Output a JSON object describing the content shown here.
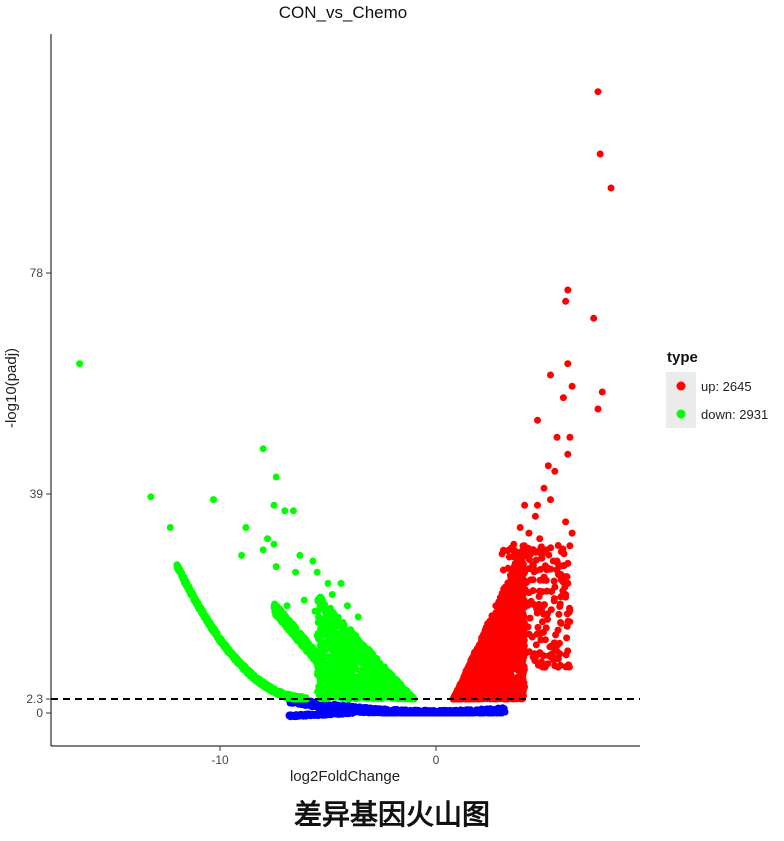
{
  "chart_data": {
    "type": "scatter",
    "title": "CON_vs_Chemo",
    "xlabel": "log2FoldChange",
    "ylabel": "-log10(padj)",
    "xlim": [
      -17.5,
      9.5
    ],
    "ylim": [
      -5,
      118
    ],
    "x_ticks": [
      -10,
      0
    ],
    "x_tick_labels": [
      "-10",
      "0"
    ],
    "y_ticks": [
      0,
      2.3,
      39,
      78
    ],
    "y_tick_labels": [
      "0",
      "2.3",
      "39",
      "78"
    ],
    "threshold_y": 2.3,
    "grid": false,
    "legend": {
      "title": "type",
      "placement": "right",
      "entries": [
        {
          "label": "up: 2645",
          "color": "#ff0000"
        },
        {
          "label": "down: 2931",
          "color": "#00ff00"
        }
      ]
    },
    "series": [
      {
        "name": "up: 2645",
        "color": "#ff0000",
        "points": [
          [
            7.5,
            110
          ],
          [
            7.6,
            99
          ],
          [
            8.1,
            93
          ],
          [
            6.1,
            75
          ],
          [
            6.0,
            73
          ],
          [
            7.3,
            70
          ],
          [
            6.1,
            62
          ],
          [
            7.7,
            57
          ],
          [
            7.5,
            54
          ],
          [
            5.3,
            60
          ],
          [
            6.3,
            58
          ],
          [
            5.9,
            56
          ],
          [
            4.7,
            52
          ],
          [
            5.6,
            49
          ],
          [
            6.2,
            49
          ],
          [
            5.2,
            44
          ],
          [
            5.5,
            43
          ],
          [
            6.1,
            46
          ],
          [
            5.0,
            40
          ],
          [
            4.7,
            37
          ],
          [
            4.1,
            37
          ],
          [
            4.6,
            35
          ],
          [
            5.3,
            38
          ],
          [
            3.9,
            33
          ],
          [
            4.3,
            32
          ],
          [
            4.8,
            31
          ],
          [
            6.3,
            32
          ],
          [
            6.0,
            34
          ],
          [
            3.6,
            30
          ],
          [
            4.2,
            28
          ],
          [
            5.1,
            29
          ],
          [
            5.6,
            27
          ],
          [
            5.7,
            26
          ],
          [
            6.1,
            23
          ],
          [
            6.0,
            21
          ]
        ]
      },
      {
        "name": "down: 2931",
        "color": "#00ff00",
        "points": [
          [
            -16.5,
            62
          ],
          [
            -13.2,
            38.5
          ],
          [
            -10.3,
            38
          ],
          [
            -12.3,
            33
          ],
          [
            -8.0,
            47
          ],
          [
            -7.4,
            42
          ],
          [
            -7.5,
            37
          ],
          [
            -7.0,
            36
          ],
          [
            -6.6,
            36
          ],
          [
            -8.8,
            33
          ],
          [
            -7.8,
            31
          ],
          [
            -8.0,
            29
          ],
          [
            -9.0,
            28
          ],
          [
            -7.5,
            30
          ],
          [
            -7.4,
            26
          ],
          [
            -5.7,
            27
          ],
          [
            -6.3,
            28
          ],
          [
            -5.5,
            25
          ],
          [
            -6.5,
            25
          ],
          [
            -5.0,
            23
          ],
          [
            -4.4,
            23
          ],
          [
            -4.8,
            21
          ],
          [
            -4.1,
            19
          ],
          [
            -3.6,
            17
          ],
          [
            -5.6,
            18
          ],
          [
            -6.9,
            19
          ],
          [
            -6.1,
            20
          ]
        ]
      },
      {
        "name": "",
        "color": "#0000ff",
        "points": []
      }
    ]
  }
}
